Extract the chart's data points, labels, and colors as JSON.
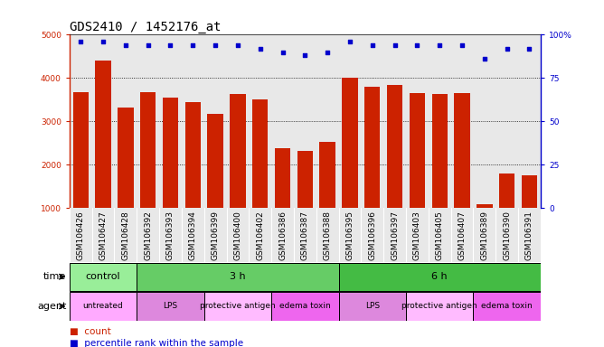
{
  "title": "GDS2410 / 1452176_at",
  "samples": [
    "GSM106426",
    "GSM106427",
    "GSM106428",
    "GSM106392",
    "GSM106393",
    "GSM106394",
    "GSM106399",
    "GSM106400",
    "GSM106402",
    "GSM106386",
    "GSM106387",
    "GSM106388",
    "GSM106395",
    "GSM106396",
    "GSM106397",
    "GSM106403",
    "GSM106405",
    "GSM106407",
    "GSM106389",
    "GSM106390",
    "GSM106391"
  ],
  "counts": [
    3680,
    4400,
    3320,
    3680,
    3560,
    3440,
    3180,
    3640,
    3500,
    2390,
    2330,
    2520,
    4000,
    3800,
    3850,
    3660,
    3630,
    3660,
    1100,
    1790,
    1750
  ],
  "percentile": [
    96,
    96,
    94,
    94,
    94,
    94,
    94,
    94,
    92,
    90,
    88,
    90,
    96,
    94,
    94,
    94,
    94,
    94,
    86,
    92,
    92
  ],
  "bar_color": "#cc2200",
  "dot_color": "#0000cc",
  "ylim_left": [
    1000,
    5000
  ],
  "ylim_right": [
    0,
    100
  ],
  "yticks_left": [
    1000,
    2000,
    3000,
    4000,
    5000
  ],
  "yticks_right": [
    0,
    25,
    50,
    75,
    100
  ],
  "grid_lines": [
    2000,
    3000,
    4000
  ],
  "time_groups": [
    {
      "label": "control",
      "start": 0,
      "end": 3,
      "color": "#99ee99"
    },
    {
      "label": "3 h",
      "start": 3,
      "end": 12,
      "color": "#66cc66"
    },
    {
      "label": "6 h",
      "start": 12,
      "end": 21,
      "color": "#44bb44"
    }
  ],
  "agent_groups": [
    {
      "label": "untreated",
      "start": 0,
      "end": 3,
      "color": "#ffaaff"
    },
    {
      "label": "LPS",
      "start": 3,
      "end": 6,
      "color": "#dd88dd"
    },
    {
      "label": "protective antigen",
      "start": 6,
      "end": 9,
      "color": "#ffbbff"
    },
    {
      "label": "edema toxin",
      "start": 9,
      "end": 12,
      "color": "#ee66ee"
    },
    {
      "label": "LPS",
      "start": 12,
      "end": 15,
      "color": "#dd88dd"
    },
    {
      "label": "protective antigen",
      "start": 15,
      "end": 18,
      "color": "#ffbbff"
    },
    {
      "label": "edema toxin",
      "start": 18,
      "end": 21,
      "color": "#ee66ee"
    }
  ],
  "plot_bg": "#e8e8e8",
  "title_fontsize": 10,
  "tick_fontsize": 6.5,
  "label_fontsize": 8,
  "row_label_fontsize": 8,
  "legend_fontsize": 7.5
}
